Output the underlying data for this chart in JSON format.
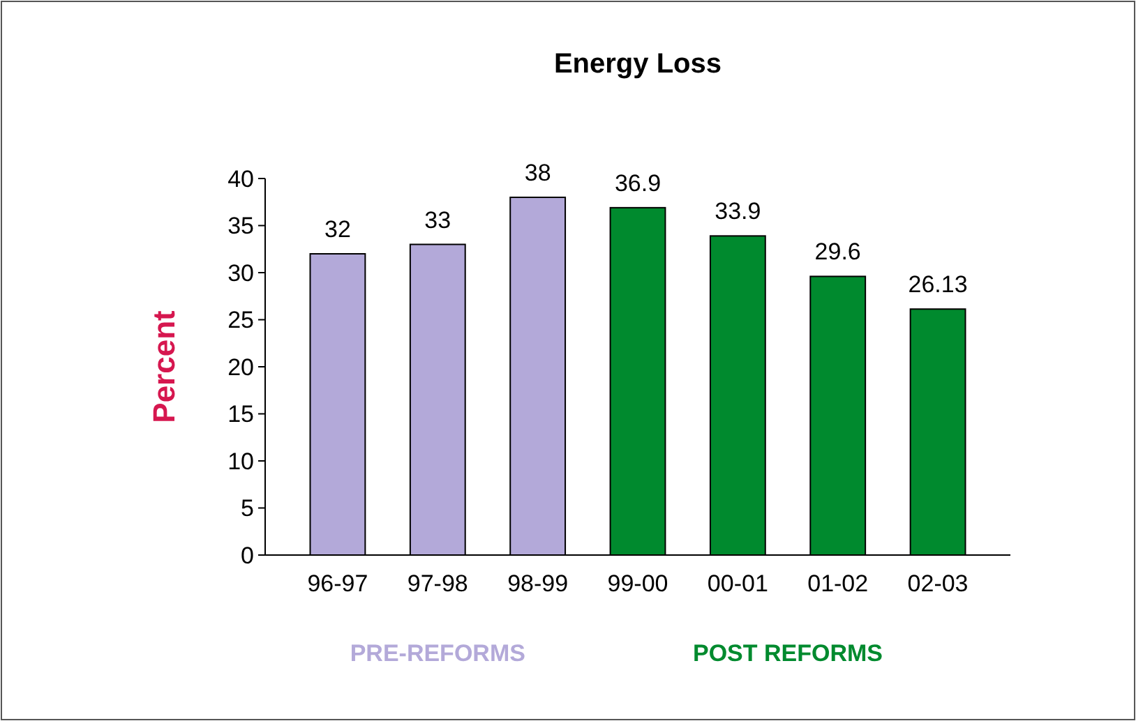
{
  "chart_data": {
    "type": "bar",
    "title": "Energy Loss",
    "ylabel": "Percent",
    "categories": [
      "96-97",
      "97-98",
      "98-99",
      "99-00",
      "00-01",
      "01-02",
      "02-03"
    ],
    "values": [
      32,
      33,
      38,
      36.9,
      33.9,
      29.6,
      26.13
    ],
    "colors": [
      "#b3a9d9",
      "#b3a9d9",
      "#b3a9d9",
      "#008a2e",
      "#008a2e",
      "#008a2e",
      "#008a2e"
    ],
    "ylim": [
      0,
      40
    ],
    "yticks": [
      0,
      5,
      10,
      15,
      20,
      25,
      30,
      35,
      40
    ],
    "data_labels": true,
    "annotations": [
      "PRE-REFORMS",
      "POST REFORMS"
    ]
  }
}
